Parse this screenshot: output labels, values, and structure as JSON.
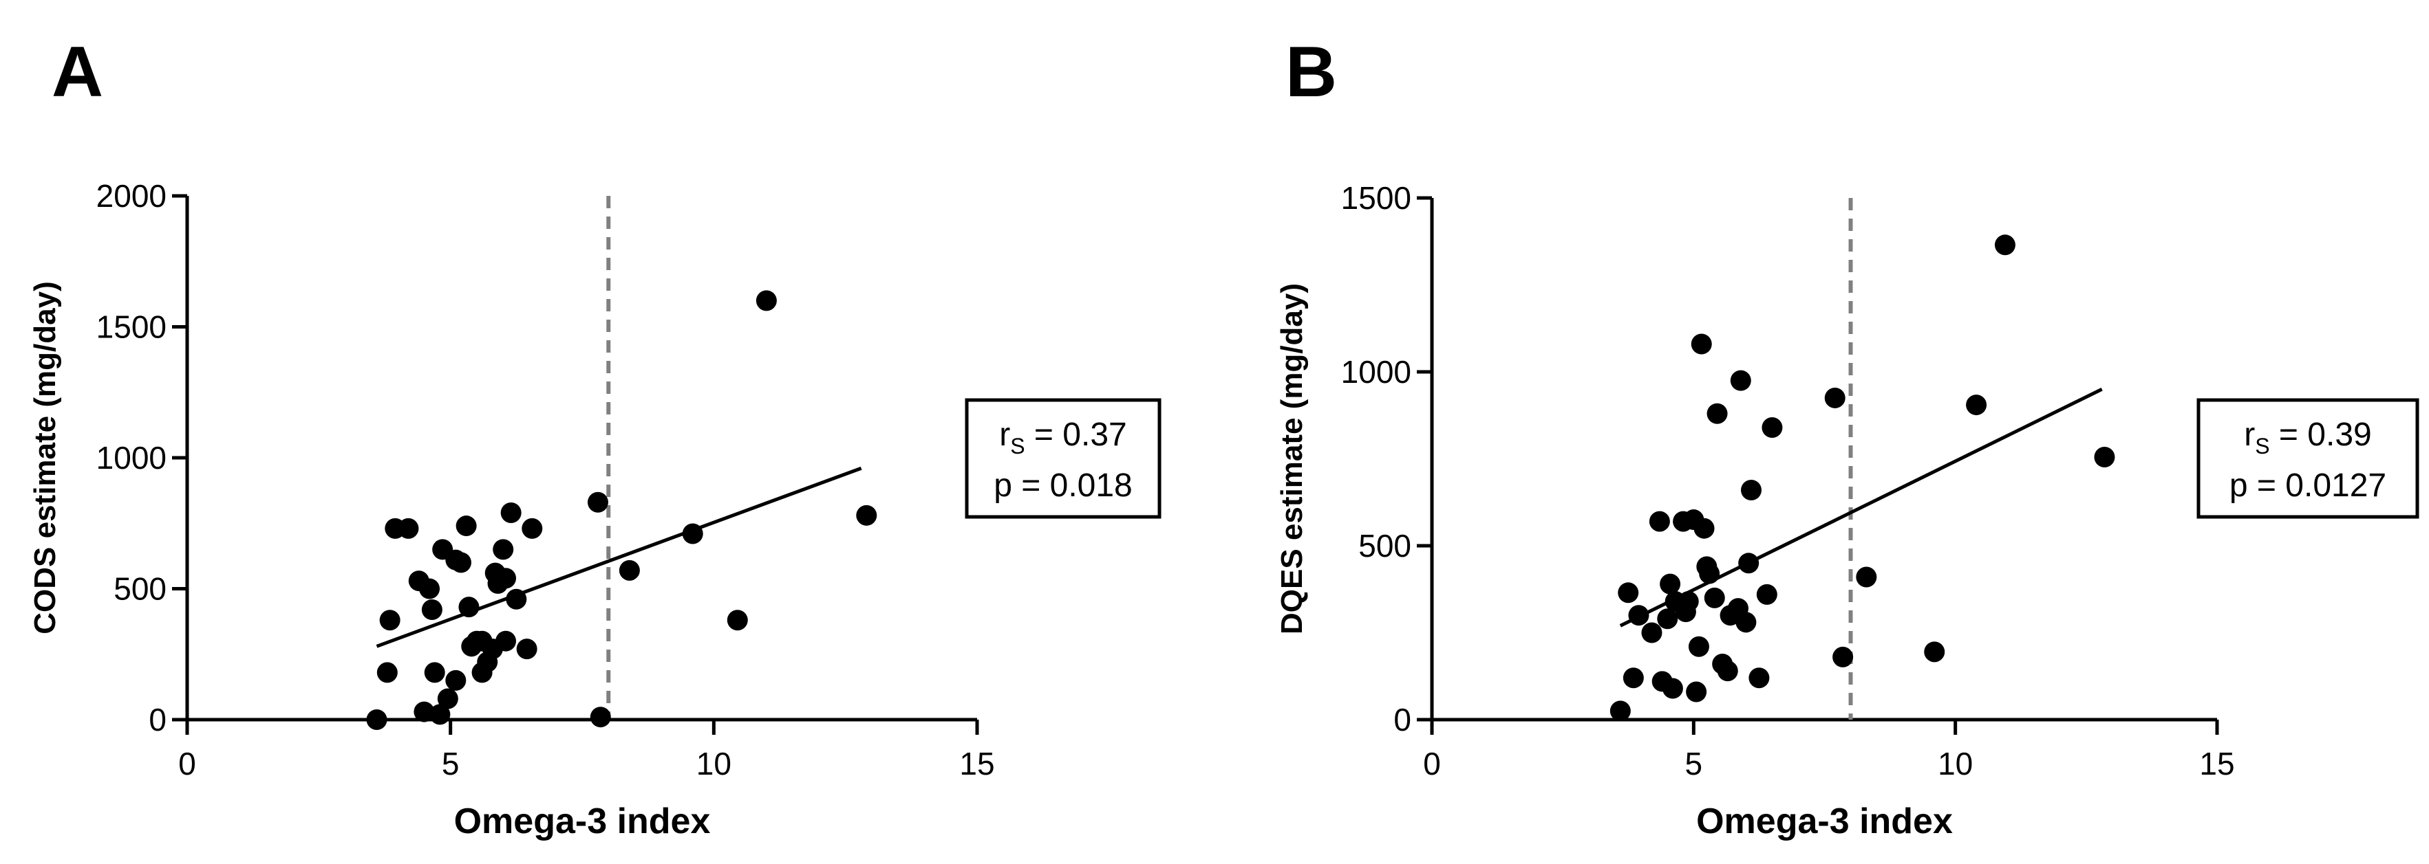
{
  "chart_data": [
    {
      "type": "scatter",
      "panel": "A",
      "xlabel": "Omega-3 index",
      "ylabel": "CODS estimate (mg/day)",
      "xlim": [
        0,
        15
      ],
      "ylim": [
        0,
        2000
      ],
      "xticks": [
        0,
        5,
        10,
        15
      ],
      "yticks": [
        0,
        500,
        1000,
        1500,
        2000
      ],
      "reference_line_x": 8,
      "regression": [
        [
          3.6,
          280
        ],
        [
          12.8,
          960
        ]
      ],
      "stats": {
        "r_prefix": "r",
        "r_sub": "S",
        "r_value": "= 0.37",
        "p": "p = 0.018"
      },
      "points": [
        [
          3.6,
          0
        ],
        [
          3.8,
          180
        ],
        [
          3.85,
          380
        ],
        [
          3.95,
          730
        ],
        [
          4.2,
          730
        ],
        [
          4.4,
          530
        ],
        [
          4.5,
          30
        ],
        [
          4.6,
          500
        ],
        [
          4.65,
          420
        ],
        [
          4.7,
          180
        ],
        [
          4.8,
          20
        ],
        [
          4.85,
          650
        ],
        [
          4.95,
          80
        ],
        [
          5.1,
          610
        ],
        [
          5.1,
          150
        ],
        [
          5.2,
          600
        ],
        [
          5.3,
          740
        ],
        [
          5.35,
          430
        ],
        [
          5.4,
          280
        ],
        [
          5.5,
          300
        ],
        [
          5.6,
          180
        ],
        [
          5.6,
          300
        ],
        [
          5.7,
          220
        ],
        [
          5.8,
          270
        ],
        [
          5.85,
          560
        ],
        [
          5.9,
          520
        ],
        [
          6.0,
          650
        ],
        [
          6.05,
          540
        ],
        [
          6.05,
          300
        ],
        [
          6.15,
          790
        ],
        [
          6.25,
          460
        ],
        [
          6.45,
          270
        ],
        [
          6.55,
          730
        ],
        [
          7.8,
          830
        ],
        [
          7.85,
          10
        ],
        [
          8.4,
          570
        ],
        [
          9.6,
          710
        ],
        [
          10.45,
          380
        ],
        [
          11.0,
          1600
        ],
        [
          12.9,
          780
        ]
      ]
    },
    {
      "type": "scatter",
      "panel": "B",
      "xlabel": "Omega-3 index",
      "ylabel": "DQES estimate (mg/day)",
      "xlim": [
        0,
        15
      ],
      "ylim": [
        0,
        1500
      ],
      "xticks": [
        0,
        5,
        10,
        15
      ],
      "yticks": [
        0,
        500,
        1000,
        1500
      ],
      "reference_line_x": 8,
      "regression": [
        [
          3.6,
          270
        ],
        [
          12.8,
          950
        ]
      ],
      "stats": {
        "r_prefix": "r",
        "r_sub": "S",
        "r_value": "= 0.39",
        "p": "p = 0.0127"
      },
      "points": [
        [
          3.6,
          25
        ],
        [
          3.75,
          365
        ],
        [
          3.85,
          120
        ],
        [
          3.95,
          300
        ],
        [
          4.2,
          250
        ],
        [
          4.35,
          570
        ],
        [
          4.4,
          110
        ],
        [
          4.5,
          290
        ],
        [
          4.55,
          390
        ],
        [
          4.6,
          90
        ],
        [
          4.65,
          340
        ],
        [
          4.8,
          570
        ],
        [
          4.85,
          310
        ],
        [
          4.9,
          340
        ],
        [
          5.0,
          575
        ],
        [
          5.05,
          80
        ],
        [
          5.1,
          210
        ],
        [
          5.15,
          1080
        ],
        [
          5.2,
          550
        ],
        [
          5.25,
          440
        ],
        [
          5.3,
          420
        ],
        [
          5.4,
          350
        ],
        [
          5.45,
          880
        ],
        [
          5.55,
          160
        ],
        [
          5.65,
          140
        ],
        [
          5.7,
          300
        ],
        [
          5.85,
          320
        ],
        [
          5.9,
          975
        ],
        [
          6.0,
          280
        ],
        [
          6.05,
          450
        ],
        [
          6.1,
          660
        ],
        [
          6.25,
          120
        ],
        [
          6.4,
          360
        ],
        [
          6.5,
          840
        ],
        [
          7.7,
          925
        ],
        [
          7.85,
          180
        ],
        [
          8.3,
          410
        ],
        [
          9.6,
          195
        ],
        [
          10.4,
          905
        ],
        [
          10.95,
          1365
        ],
        [
          12.85,
          755
        ]
      ]
    }
  ]
}
